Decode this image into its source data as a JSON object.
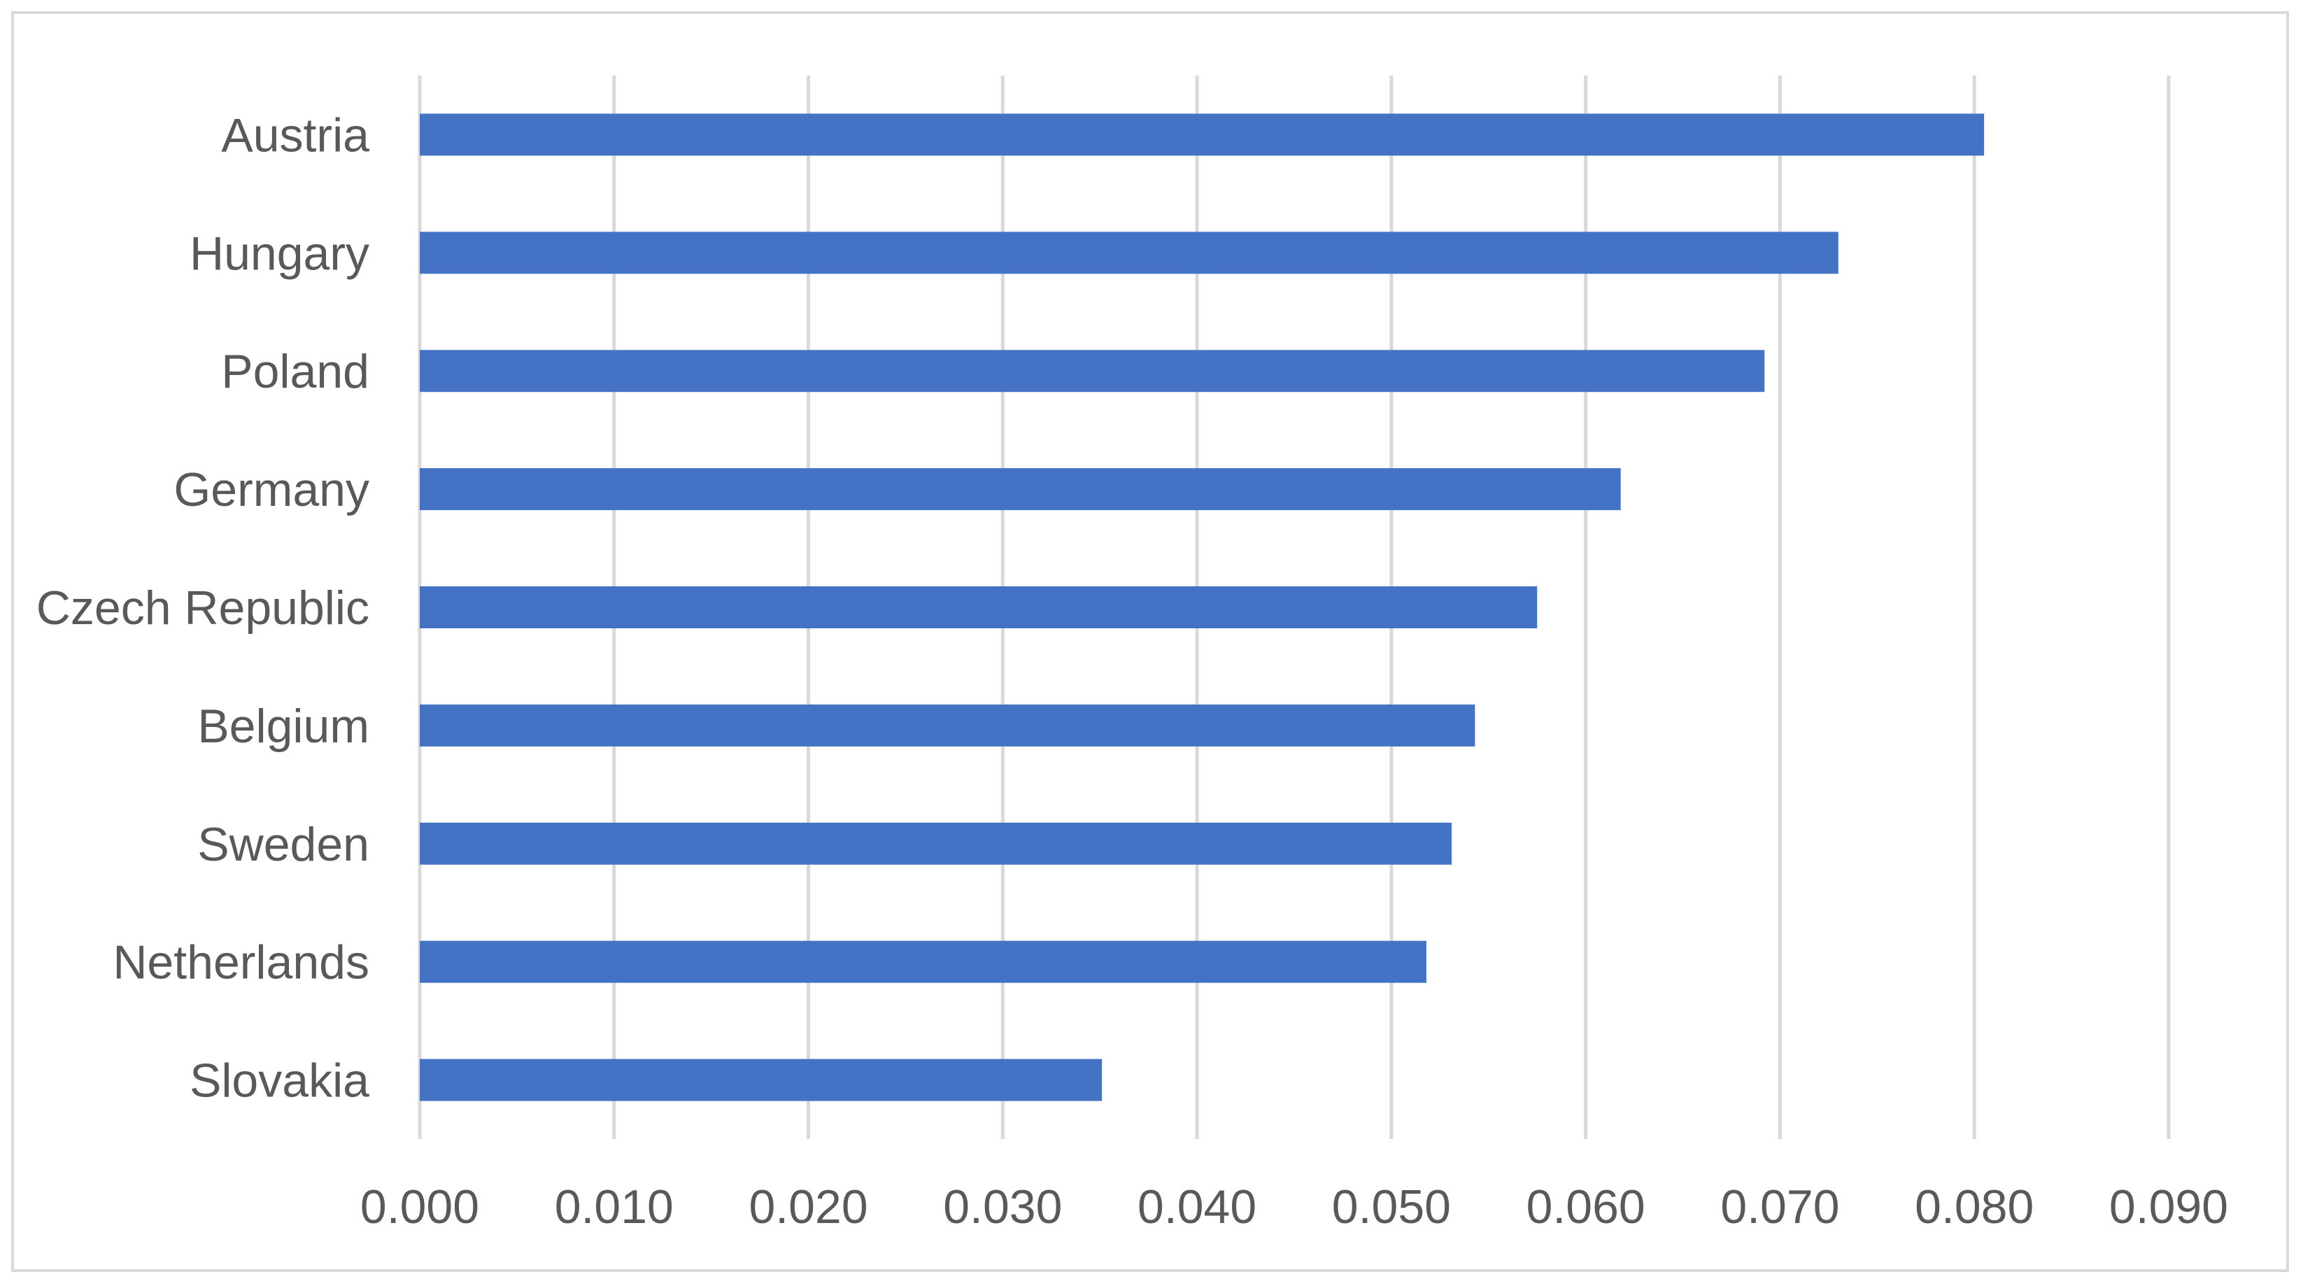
{
  "chart_data": {
    "type": "bar",
    "orientation": "horizontal",
    "title": "",
    "xlabel": "",
    "ylabel": "",
    "categories": [
      "Austria",
      "Hungary",
      "Poland",
      "Germany",
      "Czech Republic",
      "Belgium",
      "Sweden",
      "Netherlands",
      "Slovakia"
    ],
    "series": [
      {
        "values": [
          0.0805,
          0.073,
          0.0692,
          0.0618,
          0.0575,
          0.0543,
          0.0531,
          0.0518,
          0.0351
        ],
        "color": "#4472c4"
      }
    ],
    "xlim": [
      0,
      0.09
    ],
    "x_ticks": [
      "0.000",
      "0.010",
      "0.020",
      "0.030",
      "0.040",
      "0.050",
      "0.060",
      "0.070",
      "0.080",
      "0.090"
    ],
    "grid": "vertical",
    "legend": "none"
  },
  "colors": {
    "bar": "#4472c4",
    "gridline": "#d9d9d9",
    "text": "#595959",
    "frame": "#d9d9d9"
  }
}
